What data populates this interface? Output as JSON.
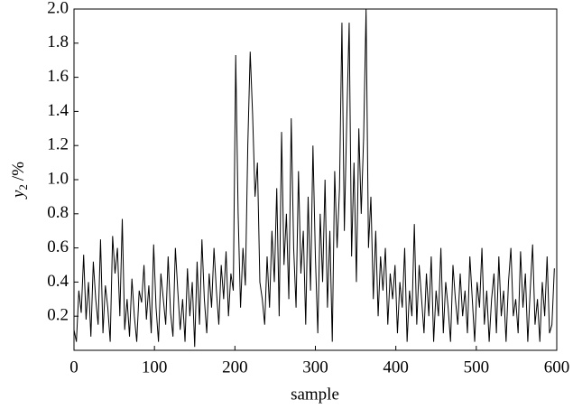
{
  "chart_data": {
    "type": "line",
    "x_label": "sample",
    "y_label": {
      "main": "y",
      "sub": "2",
      "unit": "/%"
    },
    "xlim": [
      0,
      600
    ],
    "xticks": [
      0,
      100,
      200,
      300,
      400,
      500,
      600
    ],
    "ylim": [
      0,
      2
    ],
    "yticks": [
      0.2,
      0.4,
      0.6,
      0.8,
      {
        "value": 1,
        "label": "1.0"
      },
      1.2,
      1.4,
      1.6,
      1.8,
      {
        "value": 2,
        "label": "2.0"
      }
    ],
    "x": [
      0,
      3,
      6,
      9,
      12,
      15,
      18,
      21,
      24,
      27,
      30,
      33,
      36,
      39,
      42,
      45,
      48,
      51,
      54,
      57,
      60,
      63,
      66,
      69,
      72,
      75,
      78,
      81,
      84,
      87,
      90,
      93,
      96,
      99,
      102,
      105,
      108,
      111,
      114,
      117,
      120,
      123,
      126,
      129,
      132,
      135,
      138,
      141,
      144,
      147,
      150,
      153,
      156,
      159,
      162,
      165,
      168,
      171,
      174,
      177,
      180,
      183,
      186,
      189,
      192,
      195,
      198,
      201,
      204,
      207,
      210,
      213,
      216,
      219,
      222,
      225,
      228,
      231,
      234,
      237,
      240,
      243,
      246,
      249,
      252,
      255,
      258,
      261,
      264,
      267,
      270,
      273,
      276,
      279,
      282,
      285,
      288,
      291,
      294,
      297,
      300,
      303,
      306,
      309,
      312,
      315,
      318,
      321,
      324,
      327,
      330,
      333,
      336,
      339,
      342,
      345,
      348,
      351,
      354,
      357,
      360,
      363,
      366,
      369,
      372,
      375,
      378,
      381,
      384,
      387,
      390,
      393,
      396,
      399,
      402,
      405,
      408,
      411,
      414,
      417,
      420,
      423,
      426,
      429,
      432,
      435,
      438,
      441,
      444,
      447,
      450,
      453,
      456,
      459,
      462,
      465,
      468,
      471,
      474,
      477,
      480,
      483,
      486,
      489,
      492,
      495,
      498,
      501,
      504,
      507,
      510,
      513,
      516,
      519,
      522,
      525,
      528,
      531,
      534,
      537,
      540,
      543,
      546,
      549,
      552,
      555,
      558,
      561,
      564,
      567,
      570,
      573,
      576,
      579,
      582,
      585,
      588,
      591,
      594,
      597
    ],
    "series": [
      {
        "color": "#000000",
        "values": [
          0.12,
          0.05,
          0.35,
          0.22,
          0.56,
          0.18,
          0.4,
          0.08,
          0.52,
          0.3,
          0.15,
          0.65,
          0.1,
          0.38,
          0.25,
          0.05,
          0.67,
          0.45,
          0.6,
          0.2,
          0.77,
          0.12,
          0.3,
          0.08,
          0.42,
          0.2,
          0.05,
          0.35,
          0.28,
          0.5,
          0.18,
          0.38,
          0.1,
          0.62,
          0.25,
          0.05,
          0.45,
          0.3,
          0.15,
          0.55,
          0.22,
          0.08,
          0.6,
          0.35,
          0.12,
          0.3,
          0.05,
          0.48,
          0.2,
          0.4,
          0.02,
          0.52,
          0.15,
          0.65,
          0.3,
          0.1,
          0.45,
          0.25,
          0.6,
          0.35,
          0.15,
          0.5,
          0.3,
          0.58,
          0.2,
          0.45,
          0.35,
          1.73,
          0.8,
          0.25,
          0.6,
          0.38,
          1.2,
          1.75,
          1.38,
          0.9,
          1.1,
          0.4,
          0.3,
          0.15,
          0.55,
          0.25,
          0.7,
          0.4,
          0.95,
          0.2,
          1.28,
          0.5,
          0.8,
          0.3,
          1.36,
          0.6,
          0.25,
          1.05,
          0.45,
          0.7,
          0.15,
          0.9,
          0.35,
          1.2,
          0.55,
          0.1,
          0.8,
          0.4,
          1.0,
          0.25,
          0.7,
          0.05,
          1.05,
          0.6,
          0.95,
          1.92,
          0.7,
          1.35,
          1.92,
          0.55,
          1.1,
          0.4,
          1.3,
          0.8,
          1.25,
          2.0,
          0.6,
          0.9,
          0.3,
          0.7,
          0.2,
          0.55,
          0.35,
          0.6,
          0.15,
          0.45,
          0.3,
          0.5,
          0.1,
          0.4,
          0.25,
          0.6,
          0.05,
          0.35,
          0.2,
          0.74,
          0.15,
          0.5,
          0.3,
          0.1,
          0.45,
          0.2,
          0.55,
          0.05,
          0.35,
          0.2,
          0.6,
          0.1,
          0.4,
          0.25,
          0.05,
          0.5,
          0.3,
          0.15,
          0.45,
          0.2,
          0.35,
          0.1,
          0.55,
          0.3,
          0.05,
          0.4,
          0.25,
          0.6,
          0.15,
          0.35,
          0.05,
          0.3,
          0.45,
          0.1,
          0.55,
          0.2,
          0.35,
          0.05,
          0.4,
          0.6,
          0.2,
          0.3,
          0.1,
          0.58,
          0.25,
          0.45,
          0.05,
          0.35,
          0.62,
          0.15,
          0.3,
          0.05,
          0.4,
          0.2,
          0.55,
          0.1,
          0.15,
          0.48
        ]
      }
    ]
  }
}
